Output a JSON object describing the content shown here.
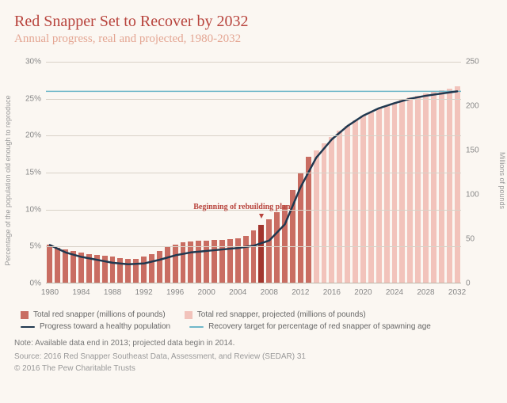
{
  "title": "Red Snapper Set to Recover by 2032",
  "subtitle": "Annual progress, real and projected, 1980-2032",
  "chart": {
    "type": "bar+line",
    "background_color": "#fbf7f2",
    "grid_color": "#d9d2c8",
    "left_axis": {
      "label": "Percentage of the population old enough to reproduce",
      "min": 0,
      "max": 30,
      "ticks": [
        0,
        5,
        10,
        15,
        20,
        25,
        30
      ],
      "tick_labels": [
        "0%",
        "5%",
        "10%",
        "15%",
        "20%",
        "25%",
        "30%"
      ]
    },
    "right_axis": {
      "label": "Millions of pounds",
      "min": 0,
      "max": 250,
      "ticks": [
        0,
        50,
        100,
        150,
        200,
        250
      ],
      "tick_labels": [
        "0",
        "50",
        "100",
        "150",
        "200",
        "250"
      ]
    },
    "x_axis": {
      "min": 1980,
      "max": 2032,
      "ticks": [
        1980,
        1984,
        1988,
        1992,
        1996,
        2000,
        2004,
        2008,
        2012,
        2016,
        2020,
        2024,
        2028,
        2032
      ]
    },
    "bars_real": {
      "color": "#c96d62",
      "years": [
        1980,
        1981,
        1982,
        1983,
        1984,
        1985,
        1986,
        1987,
        1988,
        1989,
        1990,
        1991,
        1992,
        1993,
        1994,
        1995,
        1996,
        1997,
        1998,
        1999,
        2000,
        2001,
        2002,
        2003,
        2004,
        2005,
        2006,
        2007,
        2008,
        2009,
        2010,
        2011,
        2012,
        2013
      ],
      "values": [
        44,
        40,
        38,
        37,
        35,
        33,
        32,
        31,
        30,
        29,
        28,
        28,
        30,
        33,
        37,
        42,
        44,
        46,
        47,
        48,
        48,
        49,
        49,
        50,
        51,
        54,
        60,
        66,
        72,
        80,
        88,
        105,
        125,
        143
      ]
    },
    "bars_projected": {
      "color": "#f2c3bb",
      "years": [
        2014,
        2015,
        2016,
        2017,
        2018,
        2019,
        2020,
        2021,
        2022,
        2023,
        2024,
        2025,
        2026,
        2027,
        2028,
        2029,
        2030,
        2031,
        2032
      ],
      "values": [
        150,
        158,
        165,
        172,
        178,
        184,
        189,
        193,
        197,
        201,
        204,
        207,
        210,
        212,
        214,
        216,
        218,
        220,
        222
      ]
    },
    "highlight_year": 2007,
    "highlight_color": "#a2362e",
    "line_progress": {
      "color": "#20384f",
      "width": 2.5,
      "years": [
        1980,
        1982,
        1984,
        1986,
        1988,
        1990,
        1992,
        1994,
        1996,
        1998,
        2000,
        2002,
        2004,
        2006,
        2008,
        2010,
        2012,
        2014,
        2016,
        2018,
        2020,
        2022,
        2024,
        2026,
        2028,
        2030,
        2032
      ],
      "values": [
        5.2,
        4.2,
        3.6,
        3.2,
        2.8,
        2.6,
        2.7,
        3.2,
        3.8,
        4.2,
        4.4,
        4.6,
        4.8,
        5.1,
        5.8,
        8.0,
        13.0,
        17.0,
        19.5,
        21.3,
        22.7,
        23.7,
        24.4,
        25.0,
        25.4,
        25.7,
        26.0
      ]
    },
    "line_target": {
      "color": "#6fb7c9",
      "width": 1.5,
      "value": 26.0
    },
    "annotation": {
      "text": "Beginning of rebuilding plan",
      "year": 2007
    }
  },
  "legend": {
    "bar_real": "Total red snapper (millions of pounds)",
    "bar_proj": "Total red snapper, projected (millions of pounds)",
    "line_progress": "Progress toward a healthy population",
    "line_target": "Recovery target for percentage of red snapper of spawning age"
  },
  "note": "Note: Available data end in 2013; projected data begin in 2014.",
  "source": "Source: 2016 Red Snapper Southeast Data, Assessment, and Review (SEDAR) 31",
  "copyright": "© 2016 The Pew Charitable Trusts"
}
